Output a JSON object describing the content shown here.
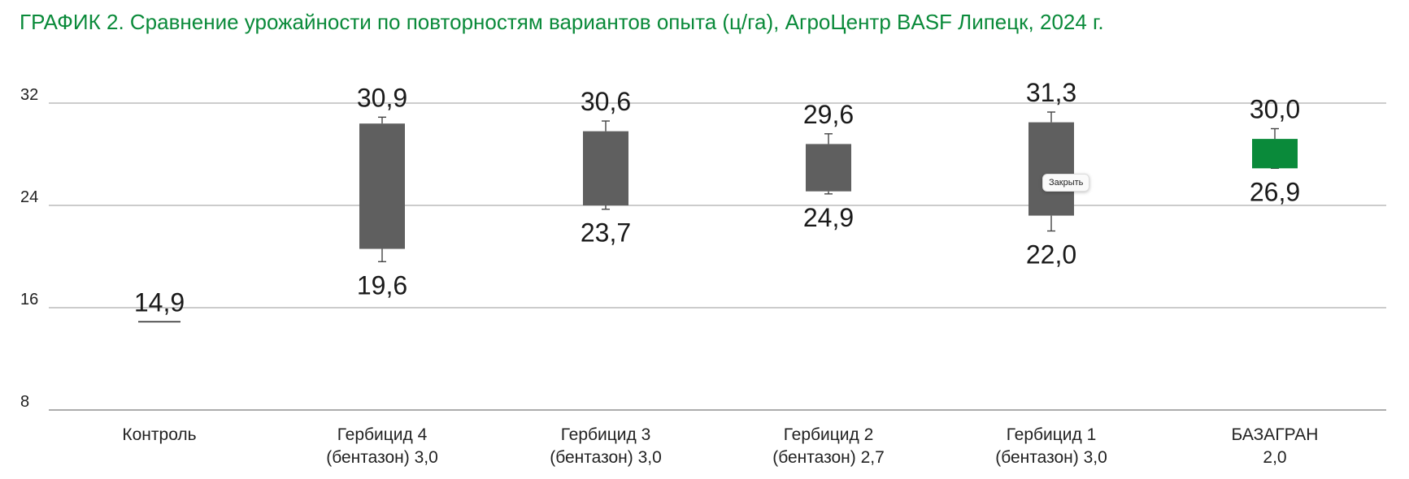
{
  "title": "ГРАФИК 2. Сравнение урожайности по повторностям вариантов опыта (ц/га), АгроЦентр BASF Липецк, 2024 г.",
  "tooltip": "Закрыть",
  "colors": {
    "title": "#0a8a3a",
    "box": "#5f5f5f",
    "highlight": "#0a8a3a",
    "grid": "#9a9a9a"
  },
  "chart_data": {
    "type": "box",
    "title": "ГРАФИК 2. Сравнение урожайности по повторностям вариантов опыта (ц/га), АгроЦентр BASF Липецк, 2024 г.",
    "xlabel": "",
    "ylabel": "",
    "ylim": [
      8,
      32
    ],
    "yticks": [
      8,
      16,
      24,
      32
    ],
    "grid": true,
    "legend": "none",
    "categories": [
      [
        "Контроль"
      ],
      [
        "Гербицид 4",
        "(бентазон) 3,0"
      ],
      [
        "Гербицид 3",
        "(бентазон) 3,0"
      ],
      [
        "Гербицид 2",
        "(бентазон) 2,7"
      ],
      [
        "Гербицид 1",
        "(бентазон) 3,0"
      ],
      [
        "БАЗАГРАН",
        "2,0"
      ]
    ],
    "series": [
      {
        "max": 14.9,
        "box_top": 14.9,
        "box_bottom": 14.9,
        "min": 14.9,
        "max_label": "14,9",
        "min_label": "",
        "highlight": false
      },
      {
        "max": 30.9,
        "box_top": 30.4,
        "box_bottom": 20.6,
        "min": 19.6,
        "max_label": "30,9",
        "min_label": "19,6",
        "highlight": false
      },
      {
        "max": 30.6,
        "box_top": 29.8,
        "box_bottom": 24.0,
        "min": 23.7,
        "max_label": "30,6",
        "min_label": "23,7",
        "highlight": false
      },
      {
        "max": 29.6,
        "box_top": 28.8,
        "box_bottom": 25.1,
        "min": 24.9,
        "max_label": "29,6",
        "min_label": "24,9",
        "highlight": false
      },
      {
        "max": 31.3,
        "box_top": 30.5,
        "box_bottom": 23.2,
        "min": 22.0,
        "max_label": "31,3",
        "min_label": "22,0",
        "highlight": false
      },
      {
        "max": 30.0,
        "box_top": 29.2,
        "box_bottom": 26.9,
        "min": 26.9,
        "max_label": "30,0",
        "min_label": "26,9",
        "highlight": true
      }
    ]
  }
}
